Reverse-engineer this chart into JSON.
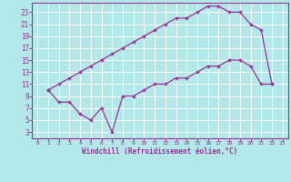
{
  "xlabel": "Windchill (Refroidissement éolien,°C)",
  "line_color": "#993399",
  "bg_color": "#b2e8e8",
  "grid_color": "#ffffff",
  "tick_color": "#993399",
  "label_color": "#993399",
  "xlim": [
    -0.5,
    23.5
  ],
  "ylim": [
    2,
    24.5
  ],
  "xticks": [
    0,
    1,
    2,
    3,
    4,
    5,
    6,
    7,
    8,
    9,
    10,
    11,
    12,
    13,
    14,
    15,
    16,
    17,
    18,
    19,
    20,
    21,
    22,
    23
  ],
  "yticks": [
    3,
    5,
    7,
    9,
    11,
    13,
    15,
    17,
    19,
    21,
    23
  ],
  "upper_x": [
    1,
    2,
    3,
    4,
    5,
    6,
    7,
    8,
    9,
    10,
    11,
    12,
    13,
    14,
    15,
    16,
    17,
    18,
    19,
    20,
    21,
    22
  ],
  "upper_y": [
    10,
    11,
    12,
    13,
    14,
    15,
    16,
    17,
    18,
    19,
    20,
    21,
    22,
    22,
    23,
    24,
    24,
    23,
    23,
    21,
    20,
    11
  ],
  "lower_x": [
    1,
    2,
    3,
    4,
    5,
    6,
    7,
    8,
    9,
    10,
    11,
    12,
    13,
    14,
    15,
    16,
    17,
    18,
    19,
    20,
    21,
    22
  ],
  "lower_y": [
    10,
    8,
    8,
    6,
    5,
    7,
    3,
    9,
    9,
    10,
    11,
    11,
    12,
    12,
    13,
    14,
    14,
    15,
    15,
    14,
    11,
    11
  ]
}
